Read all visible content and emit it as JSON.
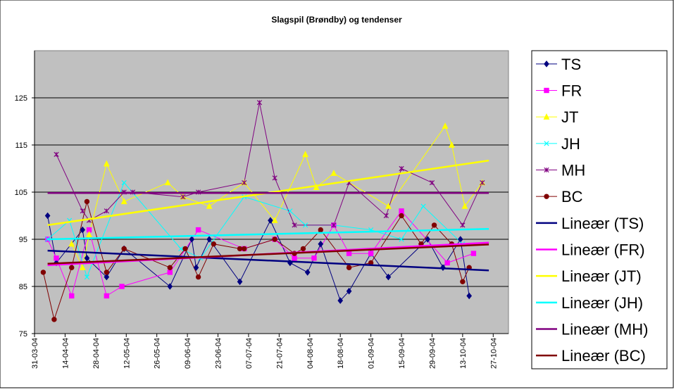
{
  "chart_data": {
    "type": "line",
    "title": "Slagspil (Brøndby) og tendenser",
    "xlabel": "",
    "ylabel": "",
    "ylim": [
      75,
      135
    ],
    "yticks": [
      75,
      85,
      95,
      105,
      115,
      125
    ],
    "xlim": [
      "2004-03-31",
      "2004-11-03"
    ],
    "xticks": [
      "31-03-04",
      "14-04-04",
      "28-04-04",
      "12-05-04",
      "26-05-04",
      "09-06-04",
      "23-06-04",
      "07-07-04",
      "21-07-04",
      "04-08-04",
      "18-08-04",
      "01-09-04",
      "15-09-04",
      "29-09-04",
      "13-10-04",
      "27-10-04"
    ],
    "grid": true,
    "legend_position": "right",
    "plot_background": "#c0c0c0",
    "series": [
      {
        "name": "TS",
        "color": "#000080",
        "marker": "diamond",
        "x": [
          "2004-04-06",
          "2004-04-10",
          "2004-04-22",
          "2004-04-24",
          "2004-05-03",
          "2004-05-11",
          "2004-06-01",
          "2004-06-11",
          "2004-06-13",
          "2004-06-19",
          "2004-07-03",
          "2004-07-17",
          "2004-07-26",
          "2004-08-03",
          "2004-08-09",
          "2004-08-18",
          "2004-08-22",
          "2004-09-01",
          "2004-09-09",
          "2004-09-27",
          "2004-10-04",
          "2004-10-12",
          "2004-10-16"
        ],
        "y": [
          100,
          90,
          97,
          91,
          87,
          93,
          85,
          95,
          89,
          95,
          86,
          99,
          90,
          88,
          94,
          82,
          84,
          92,
          87,
          95,
          89,
          95,
          83
        ]
      },
      {
        "name": "FR",
        "color": "#ff00ff",
        "marker": "square",
        "x": [
          "2004-04-06",
          "2004-04-10",
          "2004-04-17",
          "2004-04-25",
          "2004-05-03",
          "2004-05-10",
          "2004-06-01",
          "2004-06-14",
          "2004-07-05",
          "2004-07-19",
          "2004-07-28",
          "2004-08-06",
          "2004-08-15",
          "2004-08-22",
          "2004-09-01",
          "2004-09-15",
          "2004-10-06",
          "2004-10-18"
        ],
        "y": [
          95,
          91,
          83,
          97,
          83,
          85,
          88,
          97,
          93,
          95,
          91,
          91,
          98,
          92,
          92,
          101,
          90,
          92
        ]
      },
      {
        "name": "JT",
        "color": "#ffff00",
        "marker": "triangle",
        "x": [
          "2004-04-17",
          "2004-04-22",
          "2004-04-25",
          "2004-05-03",
          "2004-05-11",
          "2004-05-31",
          "2004-06-07",
          "2004-06-19",
          "2004-07-05",
          "2004-07-19",
          "2004-08-02",
          "2004-08-07",
          "2004-08-15",
          "2004-09-09",
          "2004-10-05",
          "2004-10-08",
          "2004-10-14",
          "2004-10-22"
        ],
        "y": [
          94,
          89,
          96,
          111,
          103,
          107,
          104,
          102,
          107,
          99,
          113,
          106,
          109,
          102,
          119,
          115,
          102,
          107
        ]
      },
      {
        "name": "JH",
        "color": "#00ffff",
        "marker": "x",
        "x": [
          "2004-04-06",
          "2004-04-16",
          "2004-04-24",
          "2004-05-11",
          "2004-06-06",
          "2004-06-15",
          "2004-07-05",
          "2004-07-26",
          "2004-08-02",
          "2004-08-15",
          "2004-09-01",
          "2004-09-15",
          "2004-09-25",
          "2004-10-13"
        ],
        "y": [
          95,
          99,
          87,
          107,
          93,
          91,
          104,
          101,
          98,
          98,
          97,
          95,
          102,
          94
        ]
      },
      {
        "name": "MH",
        "color": "#800080",
        "marker": "star",
        "x": [
          "2004-04-10",
          "2004-04-22",
          "2004-04-25",
          "2004-05-03",
          "2004-05-11",
          "2004-05-15",
          "2004-06-07",
          "2004-06-14",
          "2004-07-05",
          "2004-07-12",
          "2004-07-19",
          "2004-07-28",
          "2004-08-15",
          "2004-08-22",
          "2004-09-08",
          "2004-09-15",
          "2004-09-29",
          "2004-10-13",
          "2004-10-22"
        ],
        "y": [
          113,
          101,
          99,
          101,
          105,
          105,
          104,
          105,
          107,
          124,
          108,
          98,
          98,
          107,
          100,
          110,
          107,
          98,
          107
        ]
      },
      {
        "name": "BC",
        "color": "#800000",
        "marker": "circle",
        "x": [
          "2004-04-04",
          "2004-04-09",
          "2004-04-17",
          "2004-04-24",
          "2004-05-03",
          "2004-05-11",
          "2004-06-01",
          "2004-06-08",
          "2004-06-14",
          "2004-06-21",
          "2004-07-03",
          "2004-07-05",
          "2004-07-19",
          "2004-07-28",
          "2004-08-01",
          "2004-08-09",
          "2004-08-22",
          "2004-09-01",
          "2004-09-15",
          "2004-09-24",
          "2004-09-30",
          "2004-10-08",
          "2004-10-13",
          "2004-10-16"
        ],
        "y": [
          88,
          78,
          89,
          103,
          88,
          93,
          89,
          93,
          87,
          94,
          93,
          93,
          95,
          92,
          93,
          97,
          89,
          90,
          100,
          94,
          98,
          94,
          86,
          89
        ]
      },
      {
        "name": "Lineær (TS)",
        "color": "#000080",
        "marker": "none",
        "x": [
          "2004-04-06",
          "2004-10-25"
        ],
        "y": [
          92.6,
          88.4
        ]
      },
      {
        "name": "Lineær (FR)",
        "color": "#ff00ff",
        "marker": "none",
        "x": [
          "2004-04-06",
          "2004-10-25"
        ],
        "y": [
          89.5,
          94.3
        ]
      },
      {
        "name": "Lineær (JT)",
        "color": "#ffff00",
        "marker": "none",
        "x": [
          "2004-04-06",
          "2004-10-25"
        ],
        "y": [
          98.0,
          111.7
        ]
      },
      {
        "name": "Lineær (JH)",
        "color": "#00ffff",
        "marker": "none",
        "x": [
          "2004-04-06",
          "2004-10-25"
        ],
        "y": [
          95.0,
          97.2
        ]
      },
      {
        "name": "Lineær (MH)",
        "color": "#800080",
        "marker": "none",
        "x": [
          "2004-04-06",
          "2004-10-25"
        ],
        "y": [
          104.8,
          104.8
        ]
      },
      {
        "name": "Lineær (BC)",
        "color": "#800000",
        "marker": "none",
        "x": [
          "2004-04-06",
          "2004-10-25"
        ],
        "y": [
          89.8,
          93.9
        ]
      }
    ]
  }
}
